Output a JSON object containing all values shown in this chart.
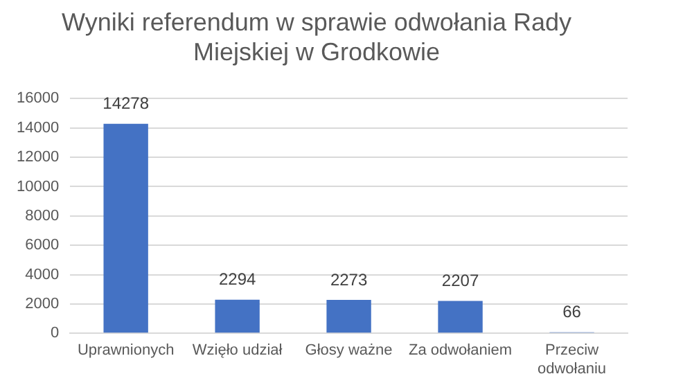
{
  "chart_data": {
    "type": "bar",
    "title": "Wyniki referendum w sprawie odwołania Rady Miejskiej w Grodkowie",
    "categories": [
      "Uprawnionych",
      "Wzięło udział",
      "Głosy ważne",
      "Za odwołaniem",
      "Przeciw odwołaniu"
    ],
    "values": [
      14278,
      2294,
      2273,
      2207,
      66
    ],
    "color": "#4472c4",
    "ylim": [
      0,
      16000
    ],
    "yticks": [
      0,
      2000,
      4000,
      6000,
      8000,
      10000,
      12000,
      14000,
      16000
    ],
    "grid": "y",
    "data_labels": true
  }
}
